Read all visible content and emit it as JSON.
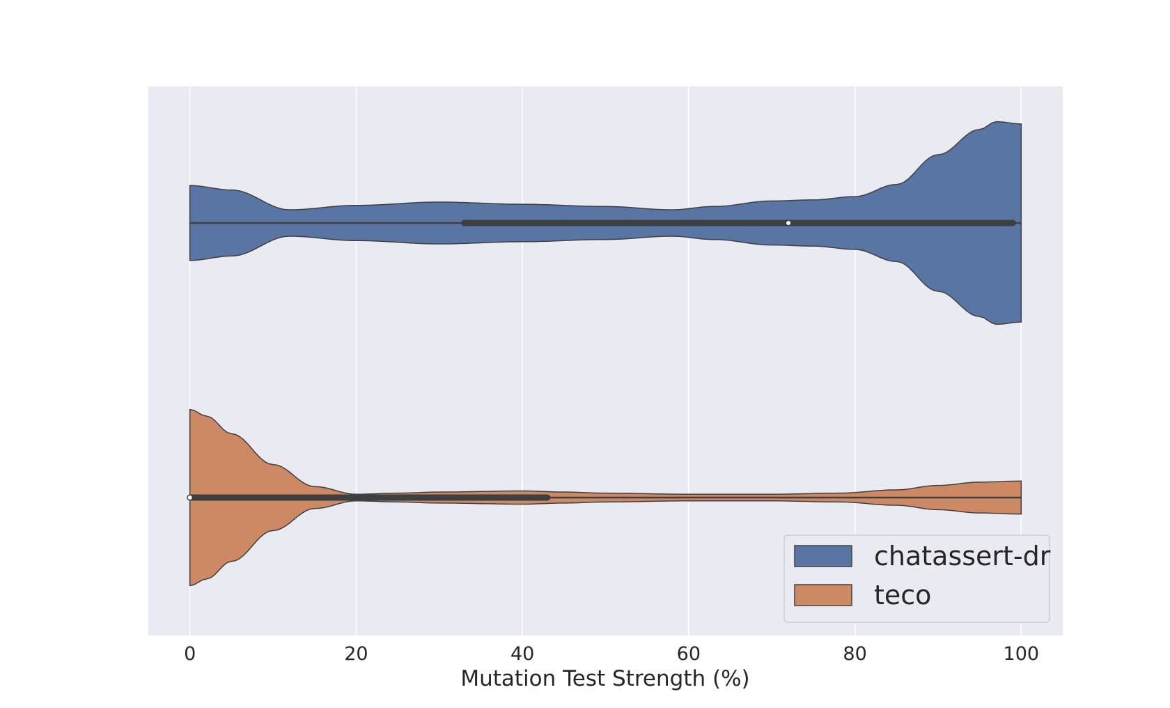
{
  "chart_data": {
    "type": "violin",
    "orientation": "horizontal",
    "title": "",
    "xlabel": "Mutation Test Strength (%)",
    "ylabel": "",
    "xlim": [
      -5,
      105
    ],
    "xticks": [
      0,
      20,
      40,
      60,
      80,
      100
    ],
    "xtick_labels": [
      "0",
      "20",
      "40",
      "60",
      "80",
      "100"
    ],
    "grid": true,
    "legend_position": "lower-right",
    "series": [
      {
        "name": "chatassert-dr",
        "color": "#5875a4",
        "quartiles": [
          33,
          72,
          99
        ],
        "range": [
          0,
          100
        ],
        "density": [
          [
            0,
            0.34
          ],
          [
            5,
            0.3
          ],
          [
            12,
            0.12
          ],
          [
            20,
            0.16
          ],
          [
            30,
            0.19
          ],
          [
            40,
            0.17
          ],
          [
            50,
            0.15
          ],
          [
            58,
            0.12
          ],
          [
            63,
            0.15
          ],
          [
            70,
            0.2
          ],
          [
            75,
            0.21
          ],
          [
            80,
            0.24
          ],
          [
            85,
            0.35
          ],
          [
            90,
            0.62
          ],
          [
            95,
            0.85
          ],
          [
            97,
            0.92
          ],
          [
            100,
            0.9
          ]
        ]
      },
      {
        "name": "teco",
        "color": "#cc8963",
        "quartiles": [
          0,
          0,
          43
        ],
        "range": [
          0,
          100
        ],
        "density": [
          [
            0,
            0.8
          ],
          [
            2,
            0.74
          ],
          [
            5,
            0.58
          ],
          [
            10,
            0.3
          ],
          [
            15,
            0.1
          ],
          [
            20,
            0.03
          ],
          [
            25,
            0.04
          ],
          [
            30,
            0.05
          ],
          [
            40,
            0.06
          ],
          [
            45,
            0.05
          ],
          [
            50,
            0.04
          ],
          [
            60,
            0.03
          ],
          [
            70,
            0.03
          ],
          [
            78,
            0.04
          ],
          [
            85,
            0.07
          ],
          [
            90,
            0.11
          ],
          [
            95,
            0.14
          ],
          [
            100,
            0.15
          ]
        ]
      }
    ]
  }
}
